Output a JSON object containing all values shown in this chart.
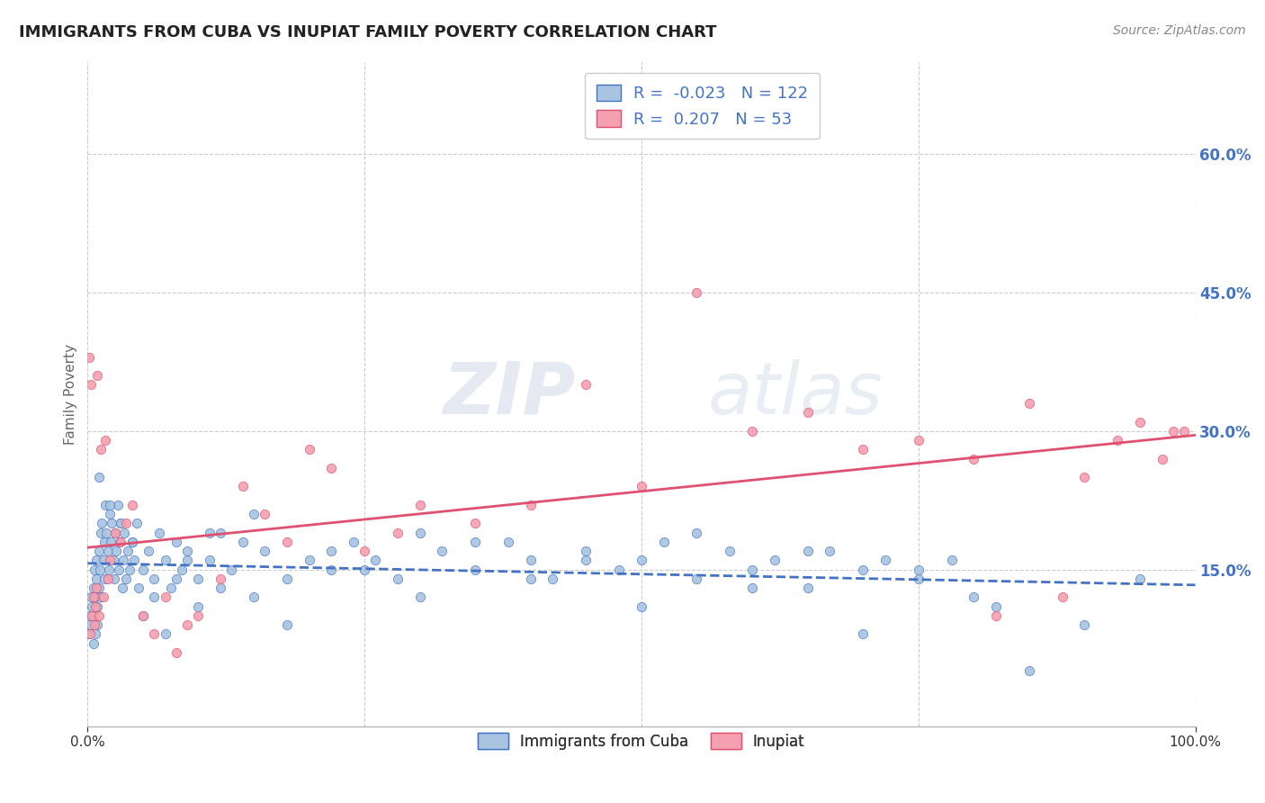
{
  "title": "IMMIGRANTS FROM CUBA VS INUPIAT FAMILY POVERTY CORRELATION CHART",
  "source": "Source: ZipAtlas.com",
  "ylabel": "Family Poverty",
  "yticks": [
    "60.0%",
    "45.0%",
    "30.0%",
    "15.0%"
  ],
  "ytick_values": [
    0.6,
    0.45,
    0.3,
    0.15
  ],
  "xlim": [
    0.0,
    1.0
  ],
  "ylim": [
    -0.02,
    0.7
  ],
  "r_cuba": -0.023,
  "n_cuba": 122,
  "r_inupiat": 0.207,
  "n_inupiat": 53,
  "color_cuba": "#a8c4e0",
  "color_inupiat": "#f4a0b0",
  "line_color_cuba": "#4472c4",
  "line_color_inupiat": "#e05070",
  "watermark_zip": "ZIP",
  "watermark_atlas": "atlas",
  "background_color": "#ffffff",
  "grid_color": "#cccccc",
  "cuba_x": [
    0.001,
    0.002,
    0.003,
    0.003,
    0.004,
    0.005,
    0.005,
    0.006,
    0.006,
    0.007,
    0.007,
    0.008,
    0.008,
    0.009,
    0.009,
    0.01,
    0.01,
    0.011,
    0.012,
    0.012,
    0.013,
    0.014,
    0.015,
    0.015,
    0.016,
    0.017,
    0.018,
    0.019,
    0.02,
    0.021,
    0.022,
    0.023,
    0.024,
    0.025,
    0.026,
    0.027,
    0.028,
    0.029,
    0.03,
    0.031,
    0.032,
    0.033,
    0.035,
    0.036,
    0.038,
    0.04,
    0.042,
    0.044,
    0.046,
    0.05,
    0.055,
    0.06,
    0.065,
    0.07,
    0.075,
    0.08,
    0.085,
    0.09,
    0.1,
    0.11,
    0.12,
    0.13,
    0.14,
    0.15,
    0.16,
    0.18,
    0.2,
    0.22,
    0.24,
    0.26,
    0.28,
    0.3,
    0.32,
    0.35,
    0.38,
    0.4,
    0.42,
    0.45,
    0.48,
    0.5,
    0.52,
    0.55,
    0.58,
    0.6,
    0.62,
    0.65,
    0.67,
    0.7,
    0.72,
    0.75,
    0.01,
    0.02,
    0.03,
    0.04,
    0.05,
    0.06,
    0.07,
    0.08,
    0.09,
    0.1,
    0.11,
    0.12,
    0.15,
    0.18,
    0.22,
    0.25,
    0.3,
    0.35,
    0.4,
    0.45,
    0.5,
    0.55,
    0.6,
    0.65,
    0.7,
    0.75,
    0.8,
    0.85,
    0.9,
    0.95,
    0.78,
    0.82
  ],
  "cuba_y": [
    0.08,
    0.1,
    0.12,
    0.09,
    0.11,
    0.13,
    0.07,
    0.15,
    0.1,
    0.12,
    0.08,
    0.14,
    0.16,
    0.11,
    0.09,
    0.17,
    0.13,
    0.15,
    0.19,
    0.12,
    0.2,
    0.16,
    0.18,
    0.14,
    0.22,
    0.19,
    0.17,
    0.15,
    0.21,
    0.18,
    0.2,
    0.16,
    0.14,
    0.19,
    0.17,
    0.22,
    0.15,
    0.18,
    0.2,
    0.13,
    0.16,
    0.19,
    0.14,
    0.17,
    0.15,
    0.18,
    0.16,
    0.2,
    0.13,
    0.15,
    0.17,
    0.14,
    0.19,
    0.16,
    0.13,
    0.18,
    0.15,
    0.17,
    0.14,
    0.16,
    0.19,
    0.15,
    0.18,
    0.12,
    0.17,
    0.14,
    0.16,
    0.15,
    0.18,
    0.16,
    0.14,
    0.19,
    0.17,
    0.15,
    0.18,
    0.16,
    0.14,
    0.17,
    0.15,
    0.16,
    0.18,
    0.14,
    0.17,
    0.15,
    0.16,
    0.13,
    0.17,
    0.15,
    0.16,
    0.14,
    0.25,
    0.22,
    0.2,
    0.18,
    0.1,
    0.12,
    0.08,
    0.14,
    0.16,
    0.11,
    0.19,
    0.13,
    0.21,
    0.09,
    0.17,
    0.15,
    0.12,
    0.18,
    0.14,
    0.16,
    0.11,
    0.19,
    0.13,
    0.17,
    0.08,
    0.15,
    0.12,
    0.04,
    0.09,
    0.14,
    0.16,
    0.11
  ],
  "inupiat_x": [
    0.001,
    0.002,
    0.003,
    0.004,
    0.005,
    0.006,
    0.007,
    0.008,
    0.009,
    0.01,
    0.012,
    0.014,
    0.016,
    0.018,
    0.02,
    0.025,
    0.03,
    0.035,
    0.04,
    0.05,
    0.06,
    0.07,
    0.08,
    0.09,
    0.1,
    0.12,
    0.14,
    0.16,
    0.18,
    0.2,
    0.22,
    0.25,
    0.28,
    0.3,
    0.35,
    0.4,
    0.45,
    0.5,
    0.55,
    0.6,
    0.65,
    0.7,
    0.75,
    0.8,
    0.85,
    0.9,
    0.93,
    0.95,
    0.97,
    0.98,
    0.99,
    0.82,
    0.88
  ],
  "inupiat_y": [
    0.38,
    0.08,
    0.35,
    0.1,
    0.12,
    0.09,
    0.11,
    0.13,
    0.36,
    0.1,
    0.28,
    0.12,
    0.29,
    0.14,
    0.16,
    0.19,
    0.18,
    0.2,
    0.22,
    0.1,
    0.08,
    0.12,
    0.06,
    0.09,
    0.1,
    0.14,
    0.24,
    0.21,
    0.18,
    0.28,
    0.26,
    0.17,
    0.19,
    0.22,
    0.2,
    0.22,
    0.35,
    0.24,
    0.45,
    0.3,
    0.32,
    0.28,
    0.29,
    0.27,
    0.33,
    0.25,
    0.29,
    0.31,
    0.27,
    0.3,
    0.3,
    0.1,
    0.12
  ]
}
